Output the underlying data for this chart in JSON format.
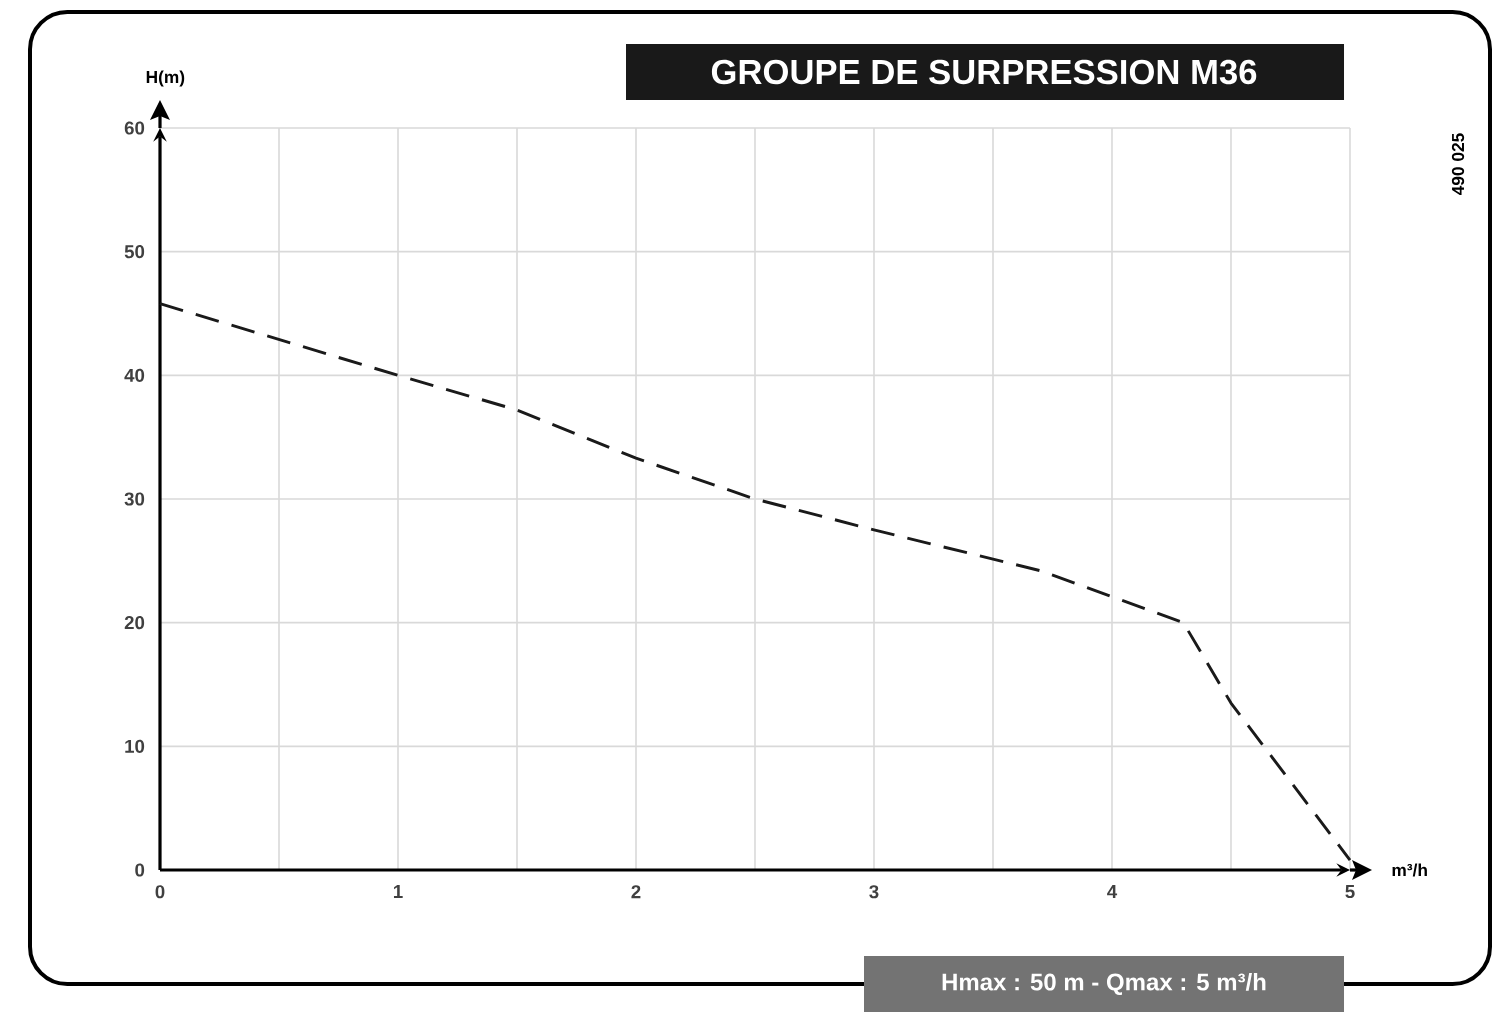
{
  "chart_data": {
    "type": "line",
    "title": "GROUPE DE SURPRESSION M36",
    "xlabel": "m³/h",
    "ylabel": "H(m)",
    "annotations": [
      "490 025",
      "Hmax : 50 m - Qmax : 5 m³/h"
    ],
    "x": [
      0,
      1,
      1.5,
      2,
      2.5,
      3,
      3.7,
      4.3,
      4.5,
      5
    ],
    "series": [
      {
        "color": "#1a1a1a",
        "values": [
          45.8,
          40,
          37.2,
          33.3,
          30,
          27.5,
          24.2,
          20,
          13.5,
          0.8
        ]
      }
    ],
    "xlim": [
      0,
      5
    ],
    "ylim": [
      0,
      60
    ],
    "xticks": [
      0,
      {
        "value": 0.5,
        "label": null
      },
      1,
      {
        "value": 1.5,
        "label": null
      },
      2,
      {
        "value": 2.5,
        "label": null
      },
      3,
      {
        "value": 3.5,
        "label": null
      },
      4,
      {
        "value": 4.5,
        "label": null
      },
      5
    ],
    "yticks": [
      0,
      10,
      20,
      30,
      40,
      50,
      60
    ],
    "grid": true,
    "legend": false,
    "marker": "none",
    "line_style": "dashed"
  }
}
